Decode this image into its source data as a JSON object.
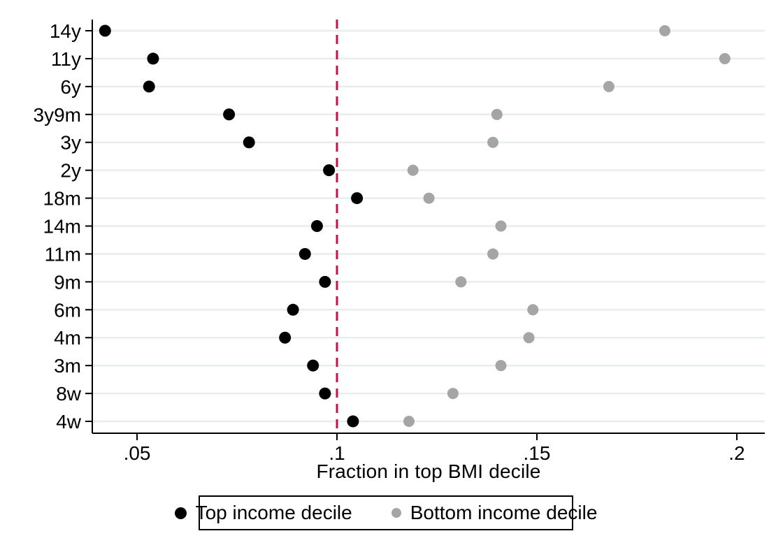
{
  "chart_data": {
    "type": "scatter",
    "subtype": "horizontal-dot-plot",
    "title": "",
    "xlabel": "Fraction in top BMI decile",
    "ylabel": "",
    "categories": [
      "14y",
      "11y",
      "6y",
      "3y9m",
      "3y",
      "2y",
      "18m",
      "14m",
      "11m",
      "9m",
      "6m",
      "4m",
      "3m",
      "8w",
      "4w"
    ],
    "series": [
      {
        "name": "Top income decile",
        "color": "#000000",
        "values": [
          0.042,
          0.054,
          0.053,
          0.073,
          0.078,
          0.098,
          0.105,
          0.095,
          0.092,
          0.097,
          0.089,
          0.087,
          0.094,
          0.097,
          0.104
        ]
      },
      {
        "name": "Bottom income decile",
        "color": "#a5a5a5",
        "values": [
          0.182,
          0.197,
          0.168,
          0.14,
          0.139,
          0.119,
          0.123,
          0.141,
          0.139,
          0.131,
          0.149,
          0.148,
          0.141,
          0.129,
          0.118
        ]
      }
    ],
    "x_ticks": [
      {
        "value": 0.05,
        "label": ".05"
      },
      {
        "value": 0.1,
        "label": ".1"
      },
      {
        "value": 0.15,
        "label": ".15"
      },
      {
        "value": 0.2,
        "label": ".2"
      }
    ],
    "xlim": [
      0.0388,
      0.207
    ],
    "reference_line": {
      "x": 0.1,
      "color": "#c4104c",
      "style": "dashed"
    },
    "grid": "horizontal",
    "gridline_color": "#e6eeee",
    "axis_color": "#000000",
    "background_color": "#ffffff",
    "legend_position": "bottom"
  }
}
